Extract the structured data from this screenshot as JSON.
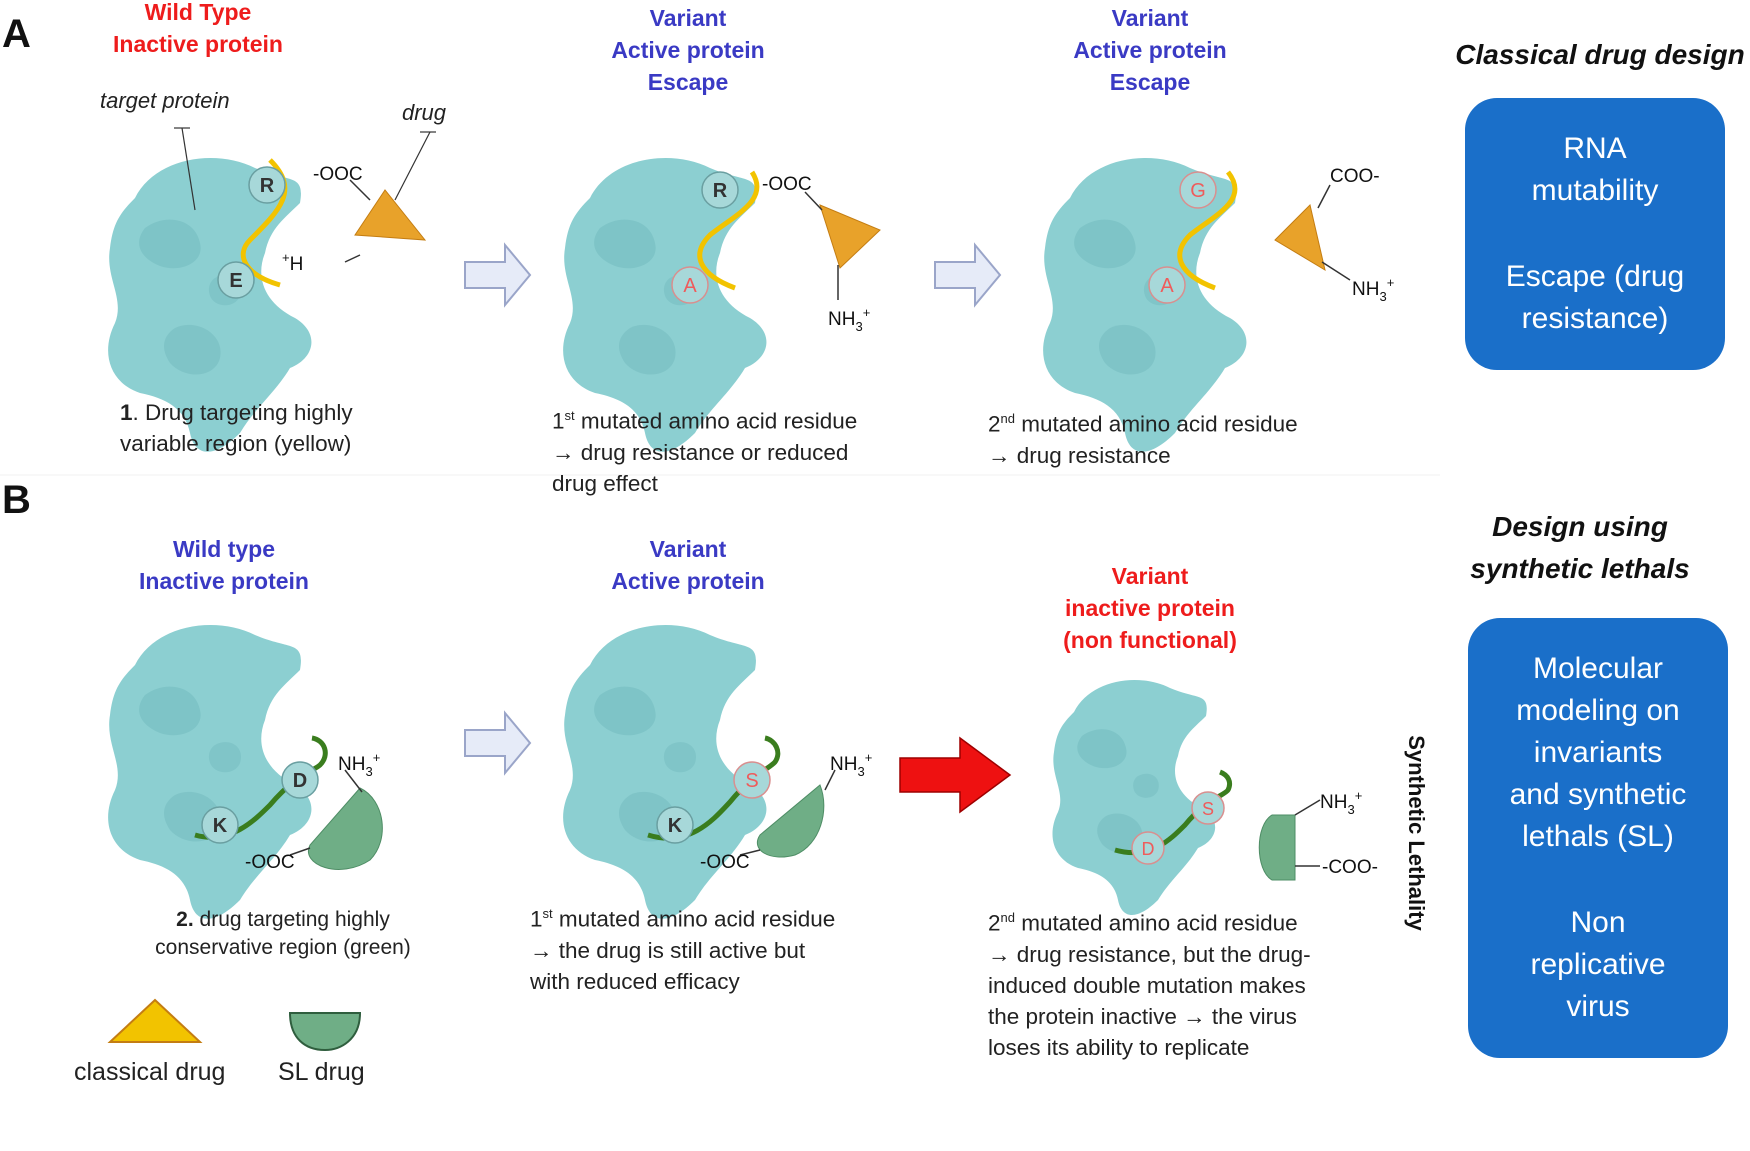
{
  "panels": {
    "a": {
      "letter": "A",
      "headers": [
        {
          "line1": "Wild Type",
          "line2": "Inactive protein"
        },
        {
          "line1": "Variant",
          "line2": "Active protein",
          "line3": "Escape"
        },
        {
          "line1": "Variant",
          "line2": "Active protein",
          "line3": "Escape"
        }
      ],
      "pointer_labels": {
        "target": "target protein",
        "drug": "drug"
      },
      "residues": {
        "p1": [
          "R",
          "E"
        ],
        "p2": [
          "R",
          "A"
        ],
        "p3": [
          "G",
          "A"
        ]
      },
      "groups": {
        "cooh_neg": "-OOC",
        "amine": "NH",
        "h3n": "H",
        "coo": "COO-"
      },
      "captions": [
        {
          "number": "1",
          "text1": ". Drug targeting highly",
          "text2": "variable region (yellow)"
        },
        {
          "sup": "st",
          "text1": "mutated amino acid residue",
          "text2": "→  drug resistance or reduced",
          "text3": "drug effect"
        },
        {
          "sup": "nd",
          "text1": "mutated amino acid residue",
          "text2": "→  drug resistance"
        }
      ],
      "side_title": "Classical drug design",
      "box": {
        "line1": "RNA",
        "line2": "mutability",
        "line3": "Escape (drug",
        "line4": "resistance)"
      }
    },
    "b": {
      "letter": "B",
      "headers": [
        {
          "line1": "Wild type",
          "line2": "Inactive protein"
        },
        {
          "line1": "Variant",
          "line2": "Active protein"
        },
        {
          "line1": "Variant",
          "line2": "inactive protein",
          "line3": "(non functional)"
        }
      ],
      "residues": {
        "p1": [
          "D",
          "K"
        ],
        "p2": [
          "S",
          "K"
        ],
        "p3": [
          "S",
          "D"
        ]
      },
      "captions": [
        {
          "number": "2.",
          "text1": " drug targeting highly",
          "text2": "conservative region (green)"
        },
        {
          "sup": "st",
          "text1": "mutated amino acid residue",
          "text2": "→ the drug is still active but",
          "text3": "with reduced efficacy"
        },
        {
          "sup": "nd",
          "text1": "mutated amino acid residue",
          "text2": "→  drug resistance, but the drug-",
          "text3": "induced double mutation makes",
          "text4": "the protein inactive →  the virus",
          "text5": "loses its ability to replicate"
        }
      ],
      "vertical_label": "Synthetic Lethality",
      "side_title": {
        "line1": "Design using",
        "line2": "synthetic lethals"
      },
      "box": {
        "line1": "Molecular",
        "line2": "modeling on",
        "line3": "invariants",
        "line4": "and synthetic",
        "line5": "lethals (SL)",
        "line6": "Non",
        "line7": "replicative",
        "line8": "virus"
      },
      "legend": {
        "classical": "classical drug",
        "sl": "SL drug"
      }
    },
    "colors": {
      "protein": "#8ccfd1",
      "protein_shade": "#74bcc0",
      "yellow_region": "#f2c300",
      "green_region": "#3a7d1e",
      "classical_drug": "#e8a22a",
      "sl_drug": "#6fae86",
      "box_blue": "#1a6fc9",
      "red_arrow": "#ee1111",
      "blue_text": "#3a3ac4",
      "red_text": "#ee1c1c"
    }
  }
}
